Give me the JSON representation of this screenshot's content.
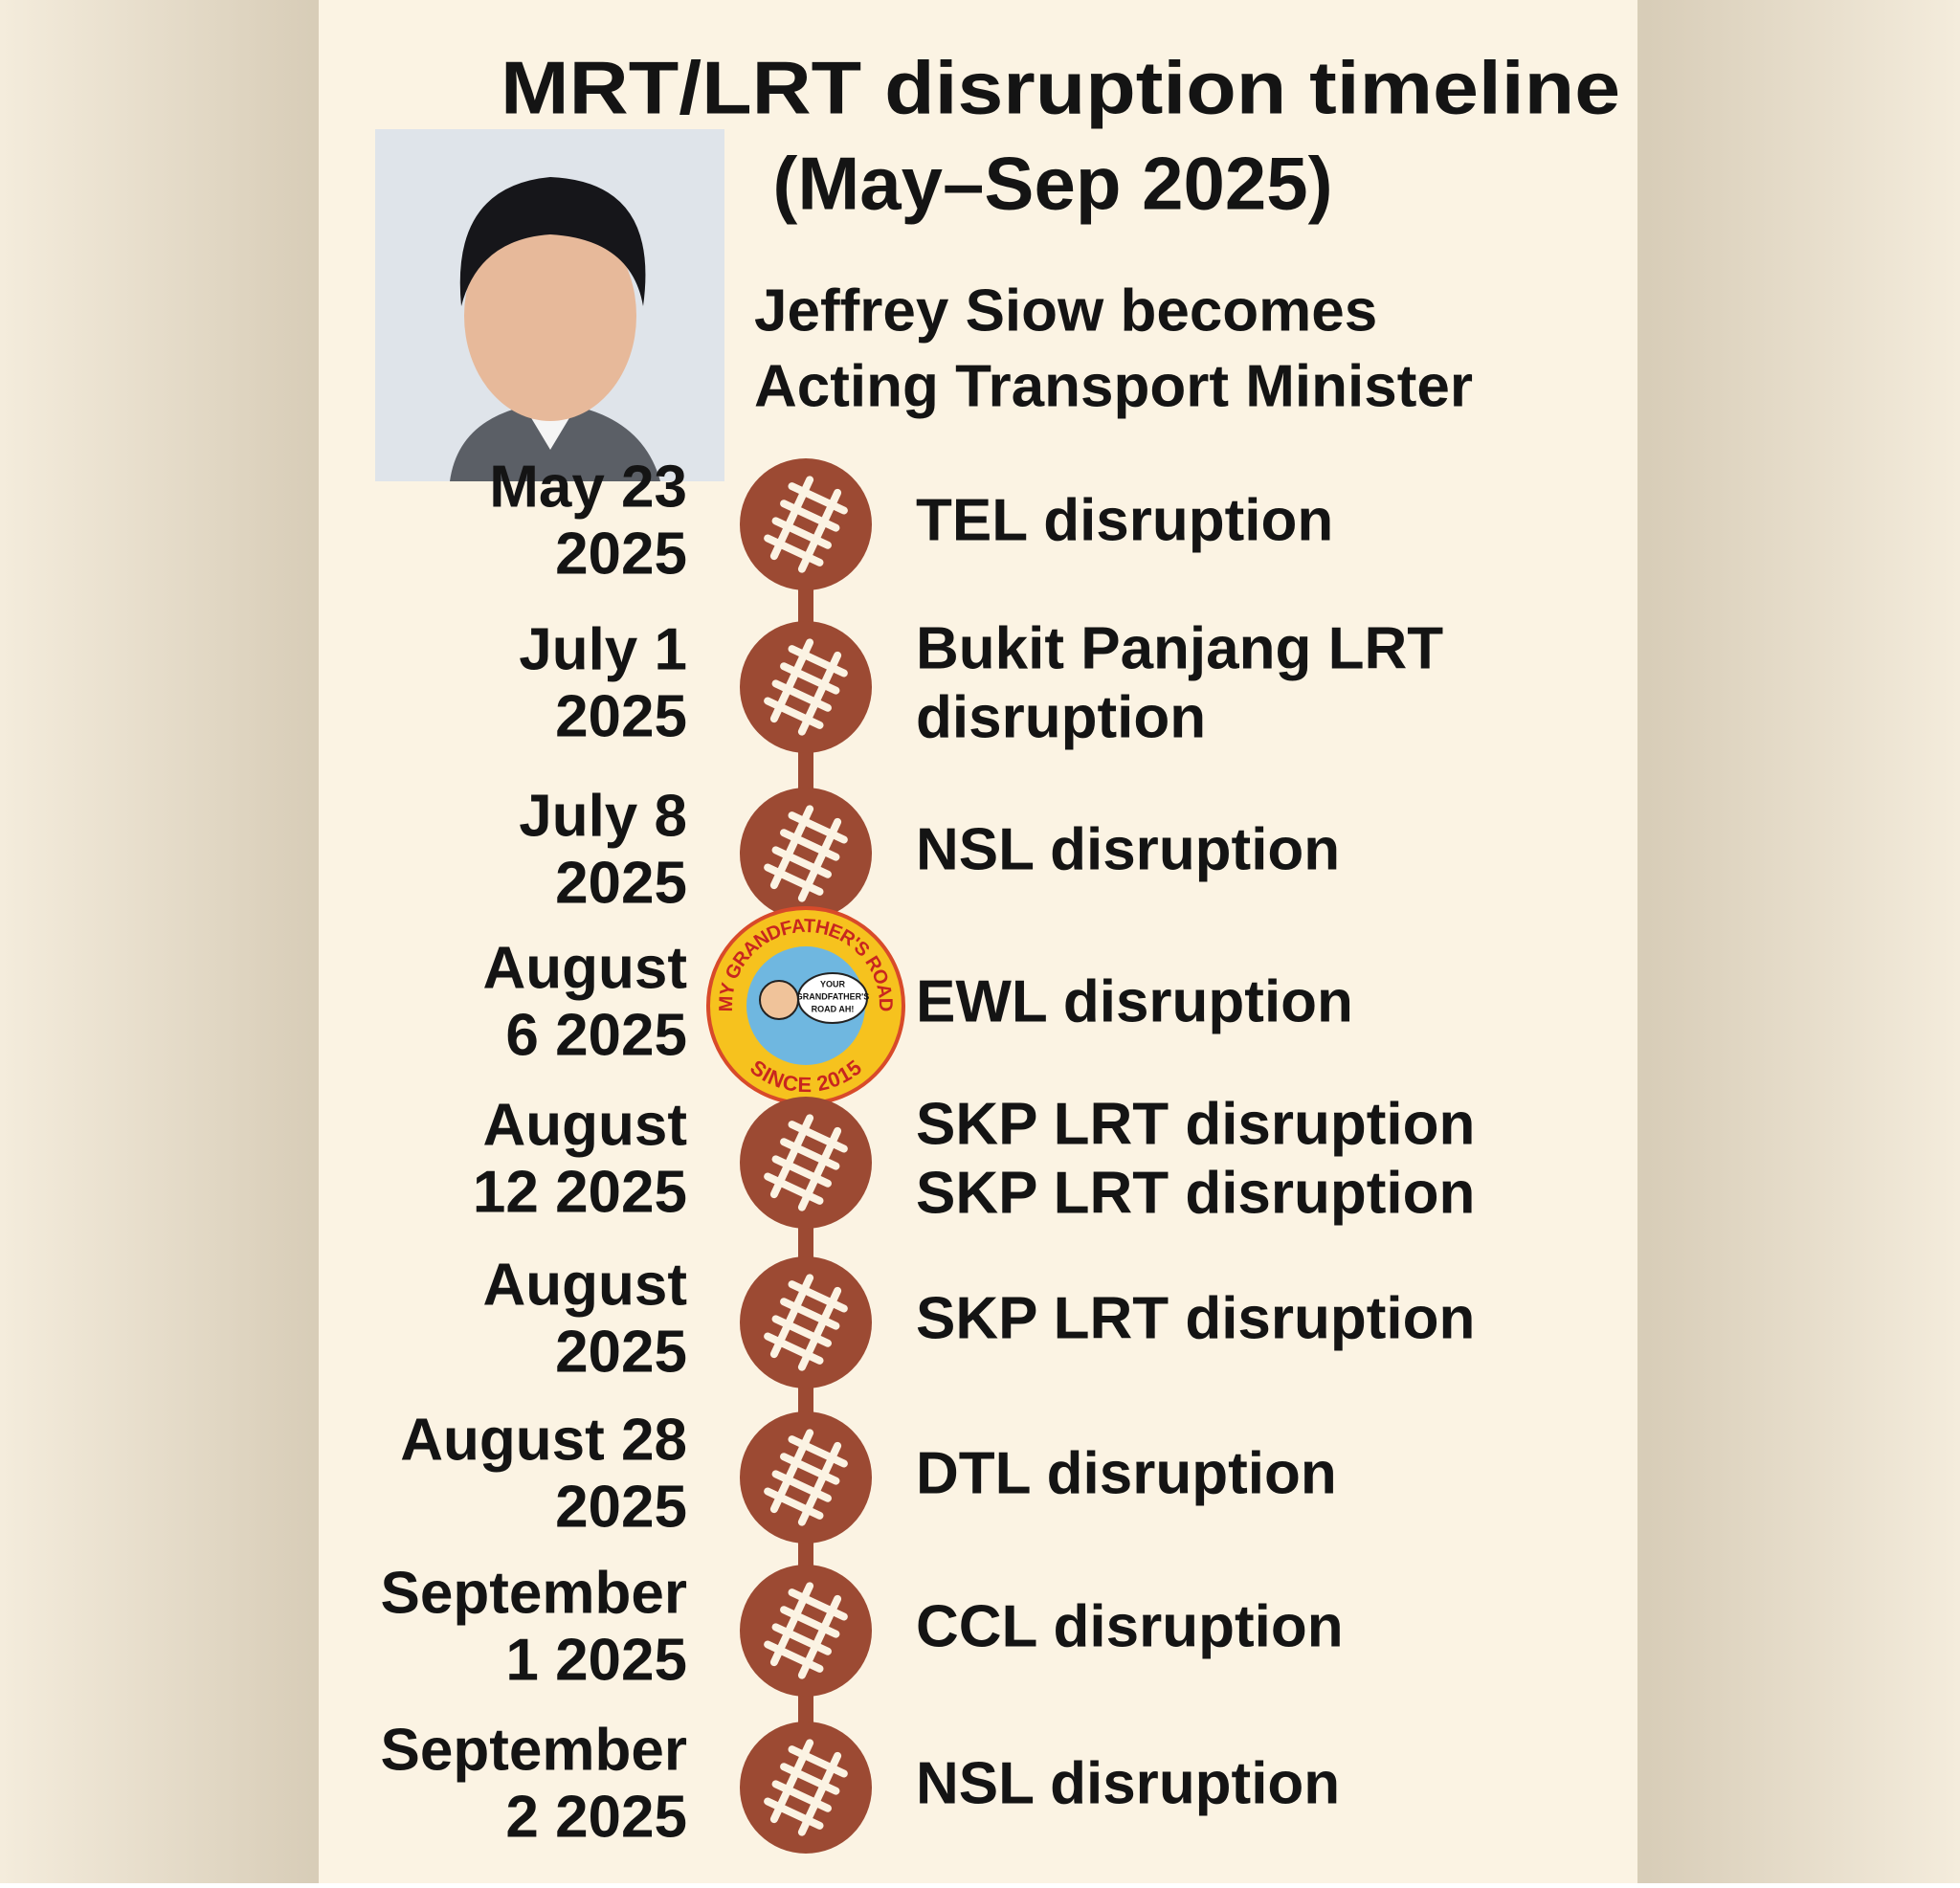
{
  "header": {
    "title": "MRT/LRT disruption timeline",
    "subtitle": "(May–Sep 2025)"
  },
  "announcement": {
    "lines": [
      "Jeffrey Siow becomes",
      "Acting Transport Minister"
    ]
  },
  "events": [
    {
      "date": [
        "May 23",
        "2025"
      ],
      "label": [
        "TEL disruption"
      ]
    },
    {
      "date": [
        "July 1",
        "2025"
      ],
      "label": [
        "Bukit Panjang LRT",
        "disruption"
      ]
    },
    {
      "date": [
        "July 8",
        "2025"
      ],
      "label": [
        "NSL disruption"
      ]
    },
    {
      "date": [
        "August",
        "6 2025"
      ],
      "label": [
        "EWL disruption"
      ]
    },
    {
      "date": [
        "August",
        "12 2025"
      ],
      "label": [
        "SKP LRT disruption",
        "SKP LRT disruption"
      ]
    },
    {
      "date": [
        "August",
        "2025"
      ],
      "label": [
        "SKP LRT disruption"
      ]
    },
    {
      "date": [
        "August 28",
        "2025"
      ],
      "label": [
        "DTL disruption"
      ]
    },
    {
      "date": [
        "September",
        "1 2025"
      ],
      "label": [
        "CCL disruption"
      ]
    },
    {
      "date": [
        "September",
        "2 2025"
      ],
      "label": [
        "NSL disruption"
      ]
    }
  ],
  "badge": {
    "top": "MY GRANDFATHER'S ROAD",
    "bottom": "SINCE 2015",
    "speech": [
      "YOUR",
      "GRANDFATHER'S",
      "ROAD AH!"
    ]
  }
}
